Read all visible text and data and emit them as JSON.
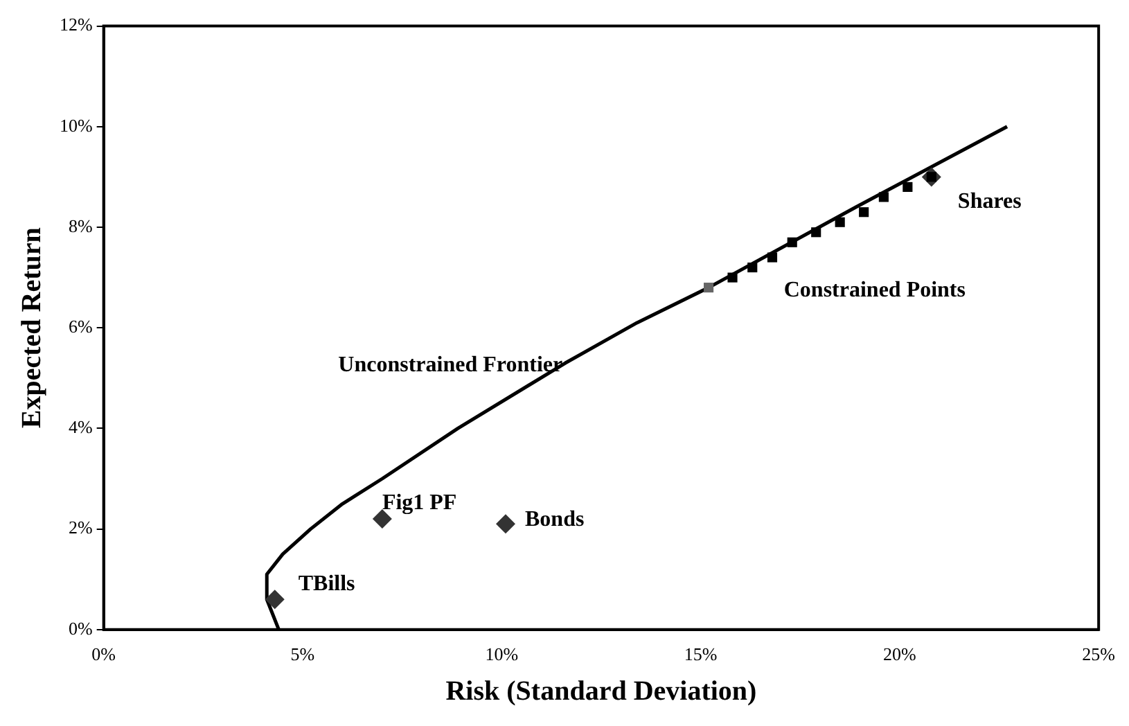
{
  "chart_data": {
    "type": "scatter",
    "xlabel": "Risk (Standard Deviation)",
    "ylabel": "Expected Return",
    "xlim": [
      0,
      25
    ],
    "ylim": [
      0,
      12
    ],
    "xticks": [
      {
        "value": 0,
        "label": "0%"
      },
      {
        "value": 5,
        "label": "5%"
      },
      {
        "value": 10,
        "label": "10%"
      },
      {
        "value": 15,
        "label": "15%"
      },
      {
        "value": 20,
        "label": "20%"
      },
      {
        "value": 25,
        "label": "25%"
      }
    ],
    "yticks": [
      {
        "value": 0,
        "label": "0%"
      },
      {
        "value": 2,
        "label": "2%"
      },
      {
        "value": 4,
        "label": "4%"
      },
      {
        "value": 6,
        "label": "6%"
      },
      {
        "value": 8,
        "label": "8%"
      },
      {
        "value": 10,
        "label": "10%"
      },
      {
        "value": 12,
        "label": "12%"
      }
    ],
    "grid": false,
    "legend": false,
    "series": [
      {
        "type": "line",
        "color": "#000000",
        "marker": "none",
        "line_style": "solid",
        "x": [
          4.4,
          4.1,
          4.1,
          4.5,
          5.2,
          6.0,
          7.0,
          8.9,
          11.6,
          13.4,
          15.2,
          18.9,
          22.7
        ],
        "values": [
          0,
          0.6,
          1.1,
          1.5,
          2.0,
          2.5,
          3.0,
          4.0,
          5.3,
          6.1,
          6.8,
          8.4,
          10.0
        ]
      },
      {
        "marker": "square",
        "colors": [
          "#666666",
          "#000000",
          "#000000",
          "#000000",
          "#000000",
          "#000000",
          "#000000",
          "#000000",
          "#000000",
          "#000000",
          "#000000"
        ],
        "x": [
          15.2,
          15.8,
          16.3,
          16.8,
          17.3,
          17.9,
          18.5,
          19.1,
          19.6,
          20.2,
          20.8
        ],
        "values": [
          6.8,
          7.0,
          7.2,
          7.4,
          7.7,
          7.9,
          8.1,
          8.3,
          8.6,
          8.8,
          9.0
        ]
      },
      {
        "marker": "diamond",
        "color": "#333333",
        "x": [
          20.8,
          7.0,
          10.1,
          4.3
        ],
        "values": [
          9.0,
          2.2,
          2.1,
          0.6
        ]
      }
    ],
    "annotations": [
      {
        "text": "Unconstrained Frontier",
        "x": 11.6,
        "y": 5.3
      },
      {
        "text": "Constrained Points",
        "x": 17.3,
        "y": 7.7
      },
      {
        "text": "Shares",
        "x": 20.8,
        "y": 9.0
      },
      {
        "text": "Fig1 PF",
        "x": 7.0,
        "y": 2.2
      },
      {
        "text": "Bonds",
        "x": 10.1,
        "y": 2.1
      },
      {
        "text": "TBills",
        "x": 4.3,
        "y": 0.6
      }
    ]
  }
}
